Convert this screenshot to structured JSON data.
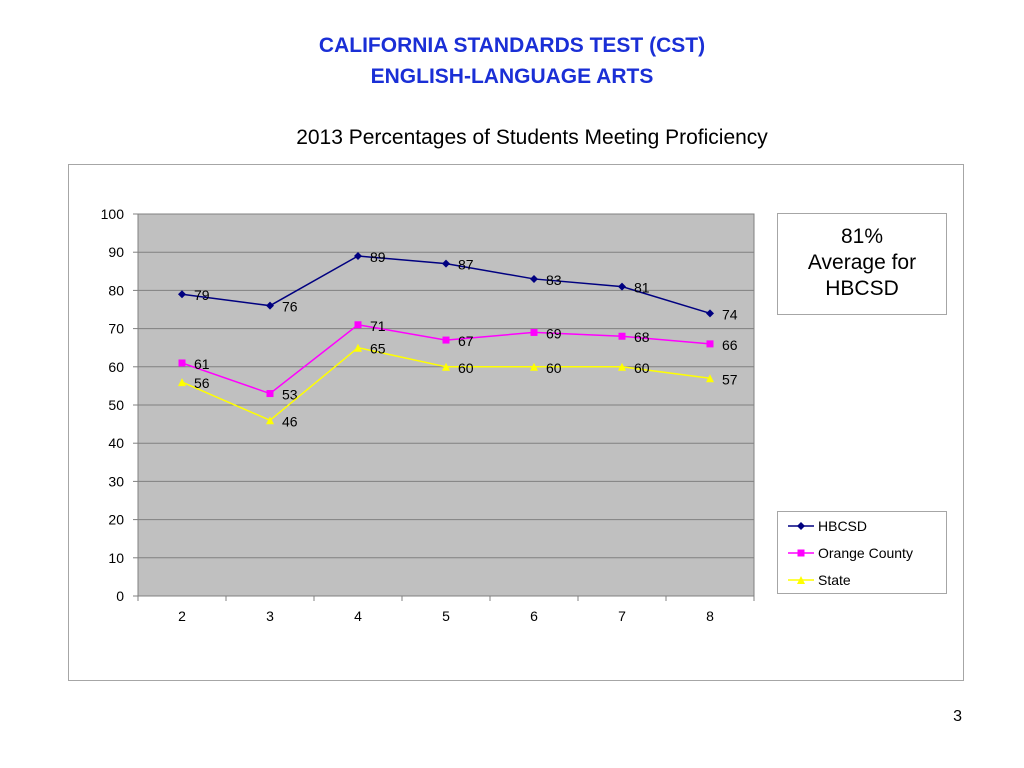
{
  "page": {
    "title_line1": "CALIFORNIA STANDARDS TEST (CST)",
    "title_line2": "ENGLISH-LANGUAGE ARTS",
    "page_number": "3"
  },
  "avg_box": {
    "line1": "81%",
    "line2": "Average for",
    "line3": "HBCSD"
  },
  "chart_data": {
    "type": "line",
    "title": "2013 Percentages of Students Meeting Proficiency",
    "xlabel": "",
    "ylabel": "",
    "categories": [
      "2",
      "3",
      "4",
      "5",
      "6",
      "7",
      "8"
    ],
    "ylim": [
      0,
      100
    ],
    "yticks": [
      0,
      10,
      20,
      30,
      40,
      50,
      60,
      70,
      80,
      90,
      100
    ],
    "grid": true,
    "plot_background": "#c0c0c0",
    "legend_position": "right",
    "series": [
      {
        "name": "HBCSD",
        "color": "#000080",
        "marker": "diamond",
        "values": [
          79,
          76,
          89,
          87,
          83,
          81,
          74
        ]
      },
      {
        "name": "Orange County",
        "color": "#ff00ff",
        "marker": "square",
        "values": [
          61,
          53,
          71,
          67,
          69,
          68,
          66
        ]
      },
      {
        "name": "State",
        "color": "#ffff00",
        "marker": "triangle",
        "values": [
          56,
          46,
          65,
          60,
          60,
          60,
          57
        ]
      }
    ]
  }
}
